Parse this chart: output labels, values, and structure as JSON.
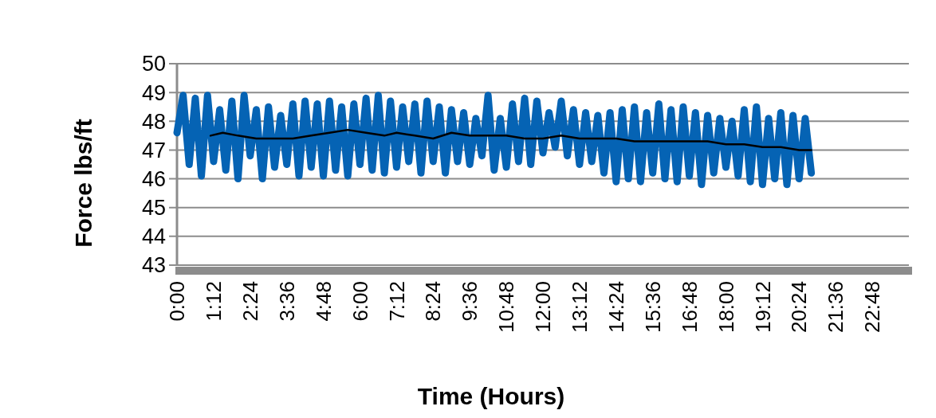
{
  "chart_data": {
    "type": "line",
    "xlabel": "Time (Hours)",
    "ylabel": "Force lbs/ft",
    "xlim": [
      0,
      24
    ],
    "xticks": [
      {
        "value": 0,
        "label": "0:00"
      },
      {
        "value": 1.2,
        "label": "1:12"
      },
      {
        "value": 2.4,
        "label": "2:24"
      },
      {
        "value": 3.6,
        "label": "3:36"
      },
      {
        "value": 4.8,
        "label": "4:48"
      },
      {
        "value": 6,
        "label": "6:00"
      },
      {
        "value": 7.2,
        "label": "7:12"
      },
      {
        "value": 8.4,
        "label": "8:24"
      },
      {
        "value": 9.6,
        "label": "9:36"
      },
      {
        "value": 10.8,
        "label": "10:48"
      },
      {
        "value": 12,
        "label": "12:00"
      },
      {
        "value": 13.2,
        "label": "13:12"
      },
      {
        "value": 14.4,
        "label": "14:24"
      },
      {
        "value": 15.6,
        "label": "15:36"
      },
      {
        "value": 16.8,
        "label": "16:48"
      },
      {
        "value": 18,
        "label": "18:00"
      },
      {
        "value": 19.2,
        "label": "19:12"
      },
      {
        "value": 20.4,
        "label": "20:24"
      },
      {
        "value": 21.6,
        "label": "21:36"
      },
      {
        "value": 22.8,
        "label": "22:48"
      }
    ],
    "ylim": [
      43,
      50
    ],
    "yticks": [
      43,
      44,
      45,
      46,
      47,
      48,
      49,
      50
    ],
    "grid": "y",
    "marker": "none",
    "line_style": "solid",
    "series": [
      {
        "color": "#0563b4",
        "x": [
          0,
          0.2,
          0.4,
          0.6,
          0.8,
          1,
          1.2,
          1.4,
          1.6,
          1.8,
          2,
          2.2,
          2.4,
          2.6,
          2.8,
          3,
          3.2,
          3.4,
          3.6,
          3.8,
          4,
          4.2,
          4.4,
          4.6,
          4.8,
          5,
          5.2,
          5.4,
          5.6,
          5.8,
          6,
          6.2,
          6.4,
          6.6,
          6.8,
          7,
          7.2,
          7.4,
          7.6,
          7.8,
          8,
          8.2,
          8.4,
          8.6,
          8.8,
          9,
          9.2,
          9.4,
          9.6,
          9.8,
          10,
          10.2,
          10.4,
          10.6,
          10.8,
          11,
          11.2,
          11.4,
          11.6,
          11.8,
          12,
          12.2,
          12.4,
          12.6,
          12.8,
          13,
          13.2,
          13.4,
          13.6,
          13.8,
          14,
          14.2,
          14.4,
          14.6,
          14.8,
          15,
          15.2,
          15.4,
          15.6,
          15.8,
          16,
          16.2,
          16.4,
          16.6,
          16.8,
          17,
          17.2,
          17.4,
          17.6,
          17.8,
          18,
          18.2,
          18.4,
          18.6,
          18.8,
          19,
          19.2,
          19.4,
          19.6,
          19.8,
          20,
          20.2,
          20.4,
          20.6,
          20.8
        ],
        "values": [
          47.6,
          48.9,
          46.5,
          48.8,
          46.1,
          48.9,
          46.6,
          48.4,
          46.3,
          48.7,
          46,
          48.9,
          46.8,
          48.4,
          46,
          48.5,
          46.4,
          48.2,
          46.5,
          48.6,
          46.1,
          48.7,
          46.4,
          48.6,
          46.1,
          48.7,
          46.3,
          48.5,
          46.1,
          48.6,
          46.5,
          48.8,
          46.3,
          48.9,
          46.2,
          48.7,
          46.4,
          48.5,
          46.6,
          48.6,
          46.2,
          48.7,
          46.6,
          48.5,
          46.2,
          48.4,
          46.6,
          48.3,
          46.5,
          48.1,
          46.8,
          48.9,
          46.3,
          48.1,
          46.4,
          48.6,
          46.6,
          48.8,
          46.5,
          48.7,
          46.9,
          48.3,
          47.1,
          48.7,
          46.8,
          48.4,
          46.5,
          48.3,
          46.6,
          48.2,
          46.2,
          48.3,
          45.9,
          48.4,
          46,
          48.5,
          45.9,
          48.3,
          46.2,
          48.6,
          46,
          48.4,
          45.9,
          48.5,
          46.1,
          48.3,
          45.8,
          48.2,
          46.2,
          48.1,
          46.4,
          48,
          46.1,
          48.4,
          45.9,
          48.5,
          45.8,
          48.1,
          46,
          48.3,
          45.8,
          48.2,
          46,
          48.1,
          46.2
        ]
      },
      {
        "color": "#000000",
        "x": [
          1.1,
          1.5,
          2,
          2.6,
          3.2,
          3.8,
          4.4,
          5,
          5.6,
          6.2,
          6.8,
          7.2,
          7.8,
          8.4,
          9,
          9.6,
          10.2,
          10.8,
          11.4,
          12,
          12.6,
          13.2,
          13.8,
          14.4,
          15,
          15.6,
          16.2,
          16.8,
          17.4,
          18,
          18.6,
          19.2,
          19.8,
          20.4,
          20.8
        ],
        "values": [
          47.5,
          47.6,
          47.5,
          47.4,
          47.4,
          47.4,
          47.5,
          47.6,
          47.7,
          47.6,
          47.5,
          47.6,
          47.5,
          47.4,
          47.6,
          47.5,
          47.5,
          47.5,
          47.4,
          47.4,
          47.5,
          47.4,
          47.4,
          47.4,
          47.3,
          47.3,
          47.3,
          47.3,
          47.3,
          47.2,
          47.2,
          47.1,
          47.1,
          47,
          47
        ]
      }
    ]
  }
}
